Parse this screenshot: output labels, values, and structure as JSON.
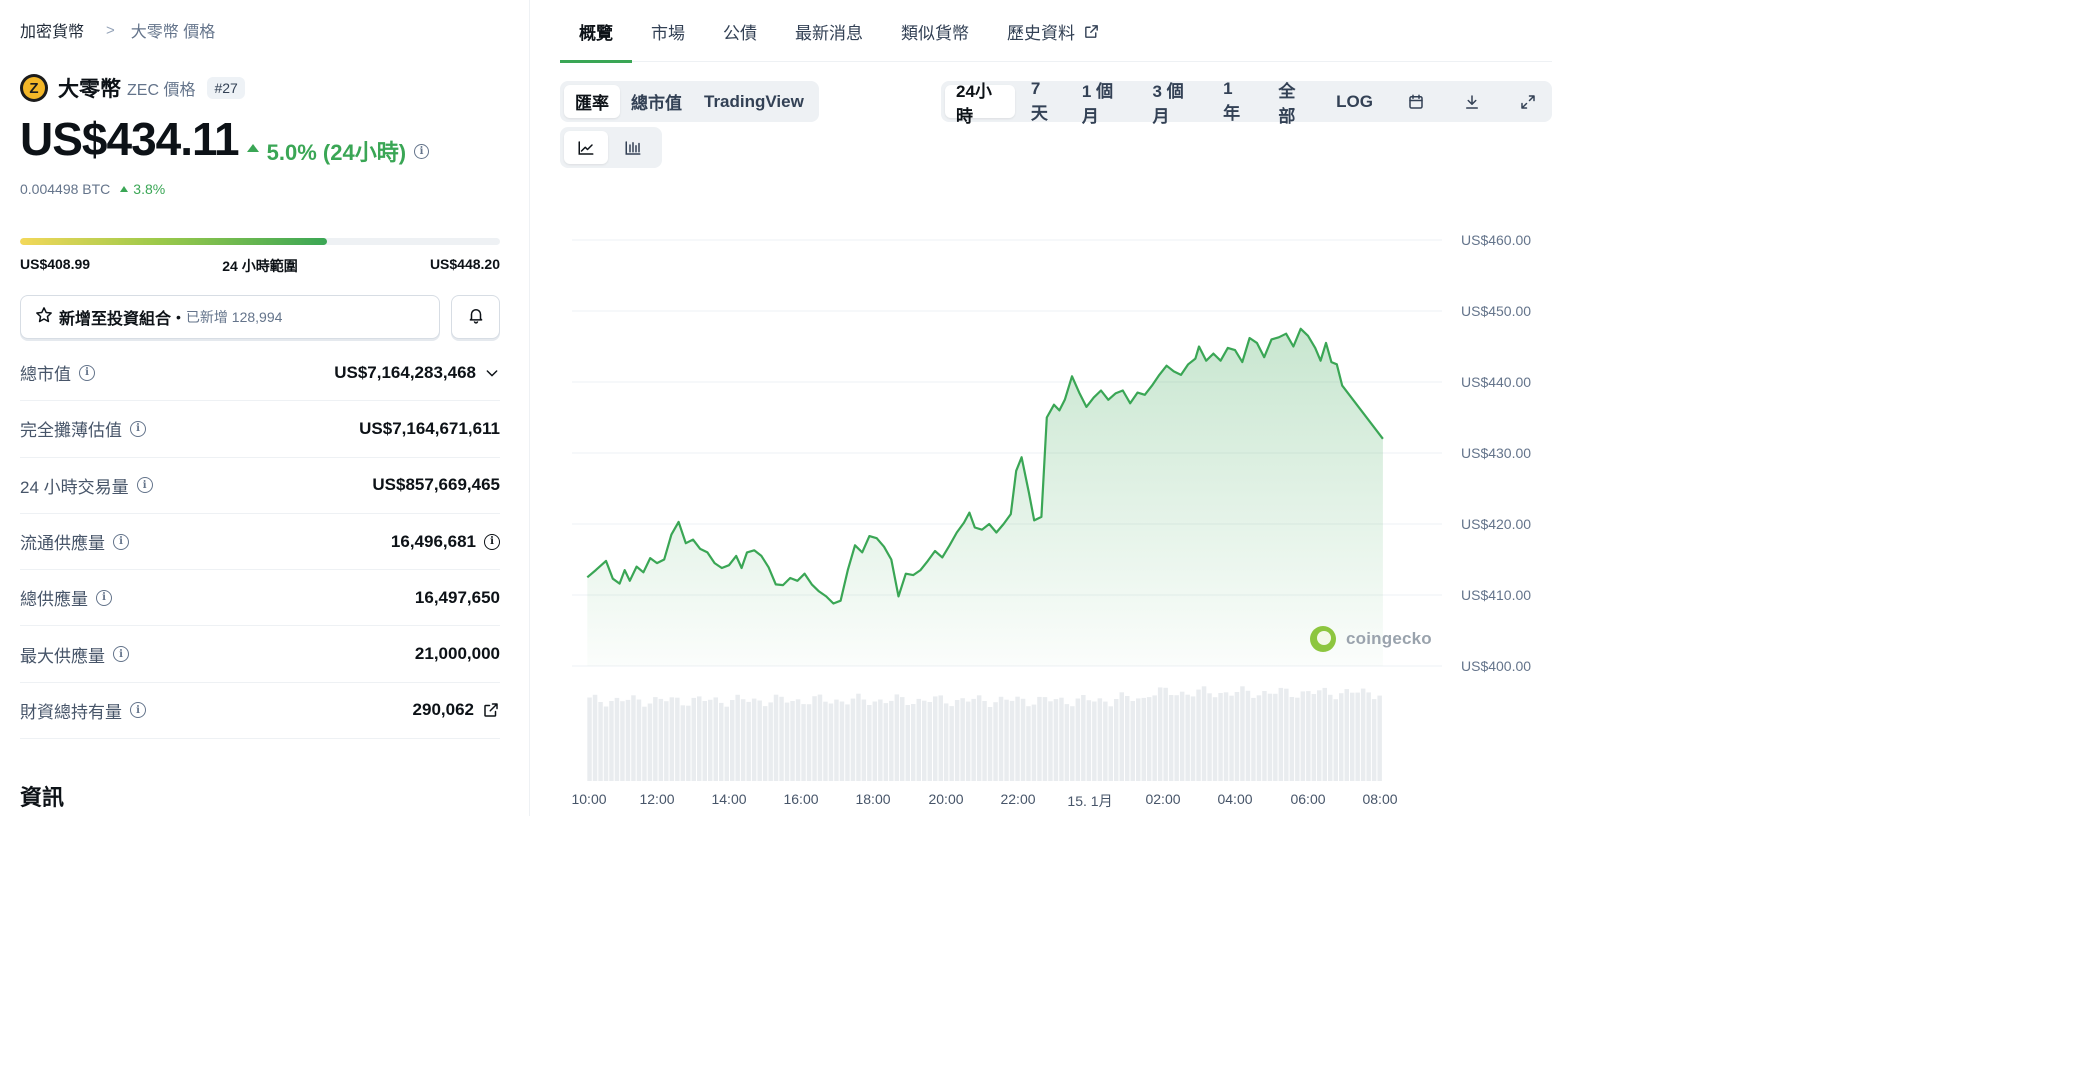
{
  "breadcrumb": {
    "parent": "加密貨幣",
    "current": "大零幣 價格"
  },
  "coin": {
    "name": "大零幣",
    "sub": "ZEC 價格",
    "rank": "#27",
    "logo_letter": "Z"
  },
  "price": {
    "value": "US$434.11",
    "change": "5.0% (24小時)",
    "btc_value": "0.004498 BTC",
    "btc_change": "3.8%"
  },
  "range": {
    "low": "US$408.99",
    "label": "24 小時範圍",
    "high": "US$448.20",
    "position_fraction": 0.64
  },
  "portfolio": {
    "label": "新增至投資組合",
    "added": "已新增 128,994"
  },
  "stats": [
    {
      "label": "總市值",
      "value": "US$7,164,283,468",
      "suffix": "chevron-down-icon"
    },
    {
      "label": "完全攤薄估值",
      "value": "US$7,164,671,611",
      "suffix": ""
    },
    {
      "label": "24 小時交易量",
      "value": "US$857,669,465",
      "suffix": ""
    },
    {
      "label": "流通供應量",
      "value": "16,496,681",
      "suffix": "info-icon"
    },
    {
      "label": "總供應量",
      "value": "16,497,650",
      "suffix": ""
    },
    {
      "label": "最大供應量",
      "value": "21,000,000",
      "suffix": ""
    },
    {
      "label": "財資總持有量",
      "value": "290,062",
      "suffix": "external-link-icon"
    }
  ],
  "section_title": "資訊",
  "tabs": [
    "概覽",
    "市場",
    "公債",
    "最新消息",
    "類似貨幣",
    "歷史資料"
  ],
  "active_tab": 0,
  "chart_types": [
    "匯率",
    "總市值",
    "TradingView"
  ],
  "ranges": [
    "24小時",
    "7天",
    "1 個月",
    "3 個月",
    "1 年",
    "全部",
    "LOG"
  ],
  "watermark": "coingecko",
  "colors": {
    "accent": "#3aa655",
    "up": "#3aa655"
  },
  "chart_data": {
    "type": "line",
    "y_ticks": [
      "US$460.00",
      "US$450.00",
      "US$440.00",
      "US$430.00",
      "US$420.00",
      "US$410.00",
      "US$400.00"
    ],
    "x_ticks": [
      "10:00",
      "12:00",
      "14:00",
      "16:00",
      "18:00",
      "20:00",
      "22:00",
      "15. 1月",
      "02:00",
      "04:00",
      "06:00",
      "08:00"
    ],
    "x_tick_hours": [
      10,
      12,
      14,
      16,
      18,
      20,
      22,
      24,
      26,
      28,
      30,
      32
    ],
    "ylim": [
      400,
      460
    ],
    "series": [
      {
        "points": [
          [
            9.95,
            412.5
          ],
          [
            10.2,
            413.5
          ],
          [
            10.5,
            414.8
          ],
          [
            10.7,
            412.3
          ],
          [
            10.9,
            411.6
          ],
          [
            11.05,
            413.5
          ],
          [
            11.2,
            412.0
          ],
          [
            11.4,
            414.0
          ],
          [
            11.6,
            413.2
          ],
          [
            11.8,
            415.2
          ],
          [
            12.0,
            414.5
          ],
          [
            12.2,
            415.0
          ],
          [
            12.4,
            418.5
          ],
          [
            12.6,
            420.3
          ],
          [
            12.8,
            417.3
          ],
          [
            13.0,
            417.8
          ],
          [
            13.2,
            416.5
          ],
          [
            13.4,
            416.0
          ],
          [
            13.6,
            414.5
          ],
          [
            13.8,
            413.8
          ],
          [
            14.0,
            414.2
          ],
          [
            14.2,
            415.5
          ],
          [
            14.35,
            413.8
          ],
          [
            14.5,
            416.0
          ],
          [
            14.7,
            416.3
          ],
          [
            14.9,
            415.5
          ],
          [
            15.1,
            413.9
          ],
          [
            15.3,
            411.5
          ],
          [
            15.5,
            411.4
          ],
          [
            15.7,
            412.4
          ],
          [
            15.9,
            412.0
          ],
          [
            16.1,
            413.0
          ],
          [
            16.3,
            411.5
          ],
          [
            16.5,
            410.5
          ],
          [
            16.7,
            409.8
          ],
          [
            16.9,
            408.8
          ],
          [
            17.1,
            409.2
          ],
          [
            17.3,
            413.5
          ],
          [
            17.5,
            417.0
          ],
          [
            17.7,
            416.0
          ],
          [
            17.9,
            418.3
          ],
          [
            18.1,
            418.0
          ],
          [
            18.3,
            416.8
          ],
          [
            18.5,
            415.0
          ],
          [
            18.7,
            409.8
          ],
          [
            18.9,
            413.0
          ],
          [
            19.1,
            412.8
          ],
          [
            19.3,
            413.5
          ],
          [
            19.5,
            414.8
          ],
          [
            19.7,
            416.2
          ],
          [
            19.9,
            415.3
          ],
          [
            20.1,
            417.0
          ],
          [
            20.3,
            418.8
          ],
          [
            20.5,
            420.2
          ],
          [
            20.65,
            421.6
          ],
          [
            20.8,
            419.5
          ],
          [
            21.0,
            419.2
          ],
          [
            21.2,
            420.0
          ],
          [
            21.4,
            418.8
          ],
          [
            21.6,
            420.0
          ],
          [
            21.8,
            421.4
          ],
          [
            21.95,
            427.5
          ],
          [
            22.1,
            429.4
          ],
          [
            22.3,
            424.5
          ],
          [
            22.45,
            420.5
          ],
          [
            22.65,
            421.0
          ],
          [
            22.8,
            435.0
          ],
          [
            23.0,
            436.8
          ],
          [
            23.15,
            436.0
          ],
          [
            23.3,
            437.5
          ],
          [
            23.5,
            440.8
          ],
          [
            23.7,
            438.5
          ],
          [
            23.9,
            436.5
          ],
          [
            24.1,
            437.8
          ],
          [
            24.3,
            438.8
          ],
          [
            24.5,
            437.5
          ],
          [
            24.7,
            438.4
          ],
          [
            24.9,
            438.8
          ],
          [
            25.1,
            437.0
          ],
          [
            25.3,
            438.5
          ],
          [
            25.5,
            438.2
          ],
          [
            25.7,
            439.5
          ],
          [
            25.9,
            441.0
          ],
          [
            26.1,
            442.3
          ],
          [
            26.3,
            441.5
          ],
          [
            26.5,
            441.0
          ],
          [
            26.7,
            442.5
          ],
          [
            26.9,
            443.3
          ],
          [
            27.0,
            445.0
          ],
          [
            27.2,
            443.0
          ],
          [
            27.4,
            444.0
          ],
          [
            27.6,
            443.0
          ],
          [
            27.8,
            444.8
          ],
          [
            28.0,
            444.5
          ],
          [
            28.2,
            442.8
          ],
          [
            28.4,
            446.2
          ],
          [
            28.6,
            445.5
          ],
          [
            28.8,
            443.5
          ],
          [
            29.0,
            446.0
          ],
          [
            29.2,
            446.3
          ],
          [
            29.4,
            446.8
          ],
          [
            29.6,
            445.0
          ],
          [
            29.8,
            447.5
          ],
          [
            30.0,
            446.5
          ],
          [
            30.2,
            444.8
          ],
          [
            30.35,
            443.0
          ],
          [
            30.5,
            445.5
          ],
          [
            30.65,
            442.8
          ],
          [
            30.8,
            442.5
          ],
          [
            30.95,
            439.5
          ],
          [
            32.08,
            432.0
          ]
        ]
      }
    ]
  }
}
